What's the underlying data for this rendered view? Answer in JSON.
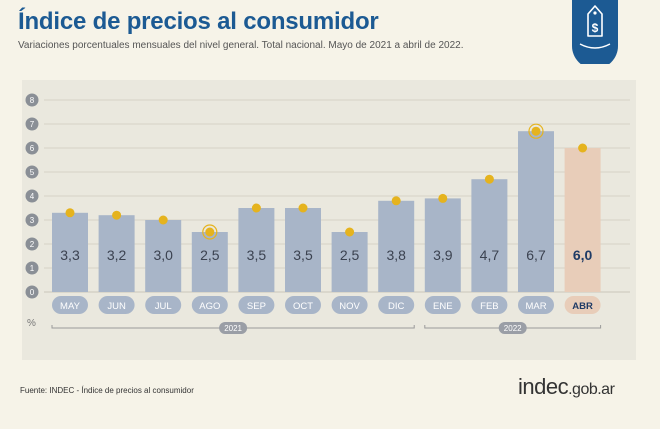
{
  "header": {
    "title": "Índice de precios al consumidor",
    "subtitle": "Variaciones porcentuales mensuales del nivel general. Total nacional. Mayo de 2021 a abril de 2022."
  },
  "footer": {
    "source": "Fuente: INDEC - Índice de precios al consumidor",
    "logo_brand": "indec",
    "logo_domain": ".gob.ar"
  },
  "icons": {
    "badge": "price-tag-dollar-icon"
  },
  "colors": {
    "title": "#1c5a93",
    "bar": "#a8b5c8",
    "bar_highlight": "#e8cdb9",
    "marker": "#e5b31e",
    "plot_bg": "#eae8de",
    "badge": "#1c5a93"
  },
  "chart_data": {
    "type": "bar",
    "categories": [
      "MAY",
      "JUN",
      "JUL",
      "AGO",
      "SEP",
      "OCT",
      "NOV",
      "DIC",
      "ENE",
      "FEB",
      "MAR",
      "ABR"
    ],
    "values": [
      3.3,
      3.2,
      3.0,
      2.5,
      3.5,
      3.5,
      2.5,
      3.8,
      3.9,
      4.7,
      6.7,
      6.0
    ],
    "value_labels": [
      "3,3",
      "3,2",
      "3,0",
      "2,5",
      "3,5",
      "3,5",
      "2,5",
      "3,8",
      "3,9",
      "4,7",
      "6,7",
      "6,0"
    ],
    "highlight_index": 11,
    "y_ticks": [
      "0",
      "1",
      "2",
      "3",
      "4",
      "5",
      "6",
      "7",
      "8"
    ],
    "ylim": [
      0,
      8
    ],
    "ylabel": "%",
    "year_groups": [
      {
        "label": "2021",
        "start": 0,
        "end": 7
      },
      {
        "label": "2022",
        "start": 8,
        "end": 11
      }
    ],
    "grid": true,
    "markers_circled": [
      3,
      10
    ]
  }
}
